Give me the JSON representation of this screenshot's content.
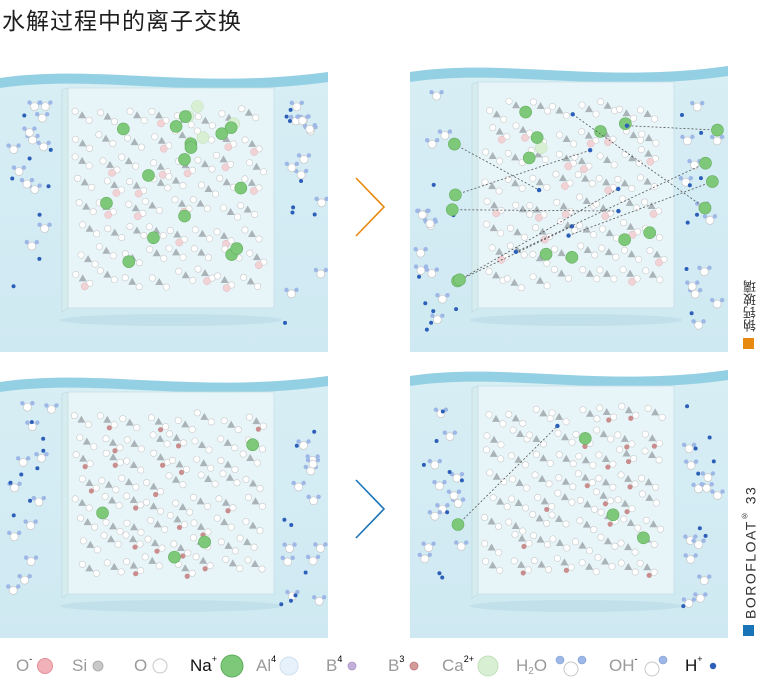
{
  "title": "水解过程中的离子交换",
  "labels": {
    "soda_lime": "钠钙玻璃",
    "borofloat_main": "BOROFLOAT",
    "borofloat_reg": "®",
    "borofloat_num": "33"
  },
  "colors": {
    "water_light": "#d8eef5",
    "water_dark": "#bfe2ee",
    "wave": "#7ec6dc",
    "glass": "#eaf6f9",
    "accent_orange": "#e8890f",
    "accent_blue": "#1a74b8",
    "na_green": "#7ec87a",
    "h_blue": "#2c5fb8",
    "o_pink": "#e89aa0",
    "b3_pink": "#c98d8d",
    "b4_purple": "#b9a3d2"
  },
  "legend": {
    "o_minus": "O",
    "o_minus_sup": "-",
    "si": "Si",
    "o": "O",
    "na": "Na",
    "na_sup": "+",
    "al": "Al",
    "al_sup": "4",
    "b4": "B",
    "b4_sup": "4",
    "b3": "B",
    "b3_sup": "3",
    "ca": "Ca",
    "ca_sup": "2+",
    "h2o_h": "H",
    "h2o_sub": "2",
    "h2o_o": "O",
    "oh": "OH",
    "oh_sup": "-",
    "h": "H",
    "h_sup": "+"
  },
  "icons": {
    "arrow_top": "chevron-right-icon",
    "arrow_bottom": "chevron-right-icon"
  }
}
